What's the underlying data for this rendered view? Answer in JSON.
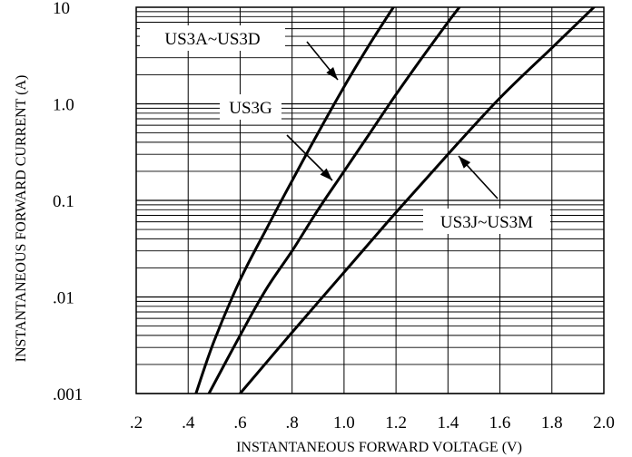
{
  "chart_data": {
    "type": "line",
    "title": "",
    "xlabel": "INSTANTANEOUS FORWARD VOLTAGE (V)",
    "ylabel": "INSTANTANEOUS FORWARD CURRENT (A)",
    "xlim": [
      0.2,
      2.0
    ],
    "ylim": [
      0.001,
      10
    ],
    "y_scale": "log",
    "grid": true,
    "x_tick_labels": [
      ".2",
      ".4",
      ".6",
      ".8",
      "1.0",
      "1.2",
      "1.4",
      "1.6",
      "1.8",
      "2.0"
    ],
    "y_tick_labels": [
      ".001",
      ".01",
      "0.1",
      "1.0",
      "10"
    ],
    "x_ticks": [
      0.2,
      0.4,
      0.6,
      0.8,
      1.0,
      1.2,
      1.4,
      1.6,
      1.8,
      2.0
    ],
    "y_ticks": [
      0.001,
      0.01,
      0.1,
      1.0,
      10
    ],
    "series": [
      {
        "name": "US3A~US3D",
        "x": [
          0.43,
          0.5,
          0.6,
          0.7,
          0.8,
          0.9,
          1.0,
          1.1,
          1.2
        ],
        "y": [
          0.001,
          0.0035,
          0.015,
          0.05,
          0.16,
          0.5,
          1.5,
          4.2,
          11
        ]
      },
      {
        "name": "US3G",
        "x": [
          0.48,
          0.6,
          0.7,
          0.8,
          0.9,
          1.0,
          1.1,
          1.2,
          1.3,
          1.4,
          1.45
        ],
        "y": [
          0.001,
          0.004,
          0.012,
          0.03,
          0.08,
          0.2,
          0.5,
          1.25,
          3.0,
          7.0,
          10.5
        ]
      },
      {
        "name": "US3J~US3M",
        "x": [
          0.6,
          0.8,
          1.0,
          1.2,
          1.4,
          1.6,
          1.8,
          1.97
        ],
        "y": [
          0.001,
          0.0043,
          0.018,
          0.075,
          0.3,
          1.15,
          3.8,
          10.5
        ]
      }
    ],
    "annotations": [
      "US3A~US3D",
      "US3G",
      "US3J~US3M"
    ]
  }
}
